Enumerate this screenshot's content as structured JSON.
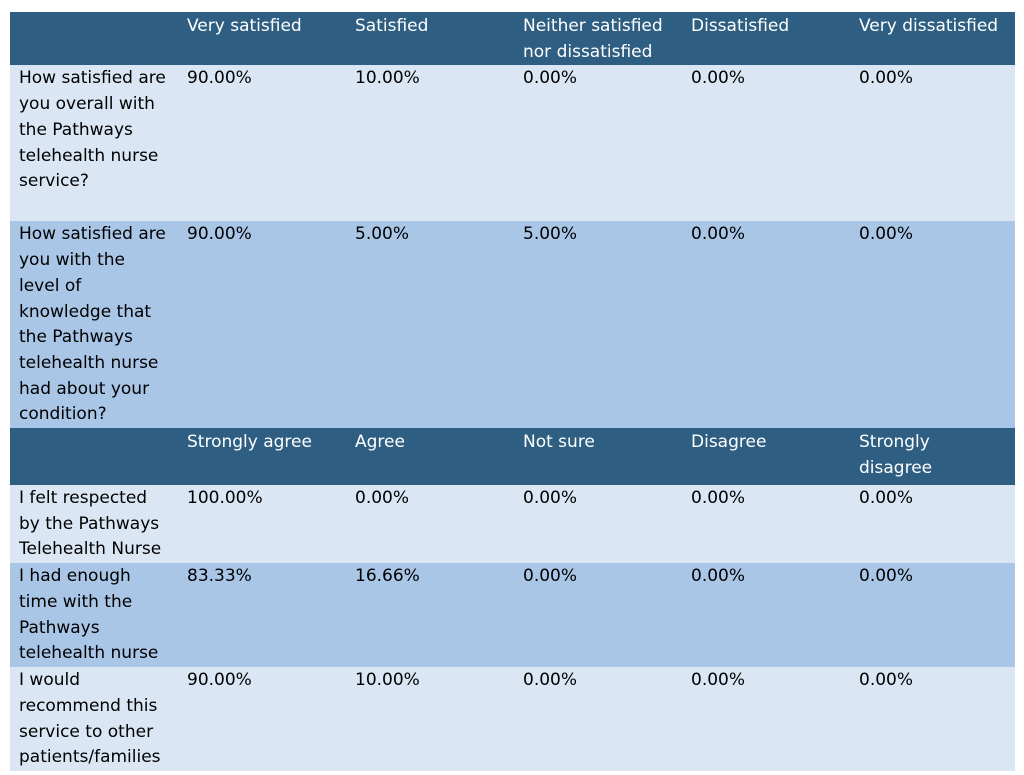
{
  "header_satisfaction": {
    "blank": "",
    "cols": [
      "Very satisfied",
      "Satisfied",
      "Neither satisfied nor dissatisfied",
      "Dissatisfied",
      "Very dissatisfied"
    ]
  },
  "satisfaction_rows": [
    {
      "question": "How satisfied are you overall with the Pathways telehealth nurse service?",
      "values": [
        "90.00%",
        "10.00%",
        "0.00%",
        "0.00%",
        "0.00%"
      ]
    },
    {
      "question": "How satisfied are you with the level of knowledge that the Pathways telehealth nurse had about your condition?",
      "values": [
        "90.00%",
        "5.00%",
        "5.00%",
        "0.00%",
        "0.00%"
      ]
    }
  ],
  "header_agreement": {
    "blank": "",
    "cols": [
      "Strongly agree",
      "Agree",
      "Not sure",
      "Disagree",
      "Strongly disagree"
    ]
  },
  "agreement_rows": [
    {
      "question": "I felt respected by the Pathways Telehealth Nurse",
      "values": [
        "100.00%",
        "0.00%",
        "0.00%",
        "0.00%",
        "0.00%"
      ]
    },
    {
      "question": "I had enough time with the Pathways telehealth nurse",
      "values": [
        "83.33%",
        "16.66%",
        "0.00%",
        "0.00%",
        "0.00%"
      ]
    },
    {
      "question": "I would recommend this service to other patients/families",
      "values": [
        "90.00%",
        "10.00%",
        "0.00%",
        "0.00%",
        "0.00%"
      ]
    }
  ]
}
